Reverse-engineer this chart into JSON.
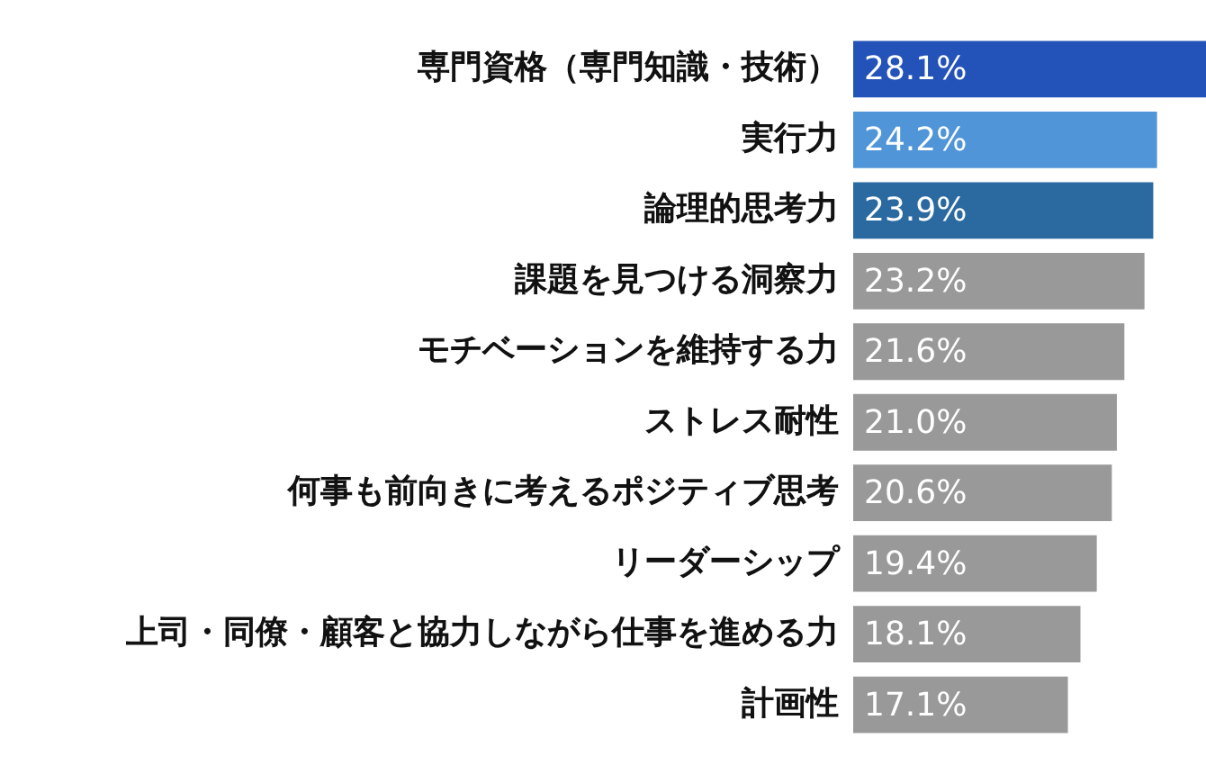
{
  "chart_data": {
    "type": "bar",
    "orientation": "horizontal",
    "grid": false,
    "legend": false,
    "categories": [
      "専門資格（専門知識・技術）",
      "実行力",
      "論理的思考力",
      "課題を見つける洞察力",
      "モチベーションを維持する力",
      "ストレス耐性",
      "何事も前向きに考えるポジティブ思考",
      "リーダーシップ",
      "上司・同僚・顧客と協力しながら仕事を進める力",
      "計画性"
    ],
    "values": [
      28.1,
      24.2,
      23.9,
      23.2,
      21.6,
      21.0,
      20.6,
      19.4,
      18.1,
      17.1
    ],
    "value_labels": [
      "28.1%",
      "24.2%",
      "23.9%",
      "23.2%",
      "21.6%",
      "21.0%",
      "20.6%",
      "19.4%",
      "18.1%",
      "17.1%"
    ],
    "colors": [
      "#2352b8",
      "#4f95d8",
      "#2b6aa0",
      "#999999",
      "#999999",
      "#999999",
      "#999999",
      "#999999",
      "#999999",
      "#999999"
    ]
  }
}
